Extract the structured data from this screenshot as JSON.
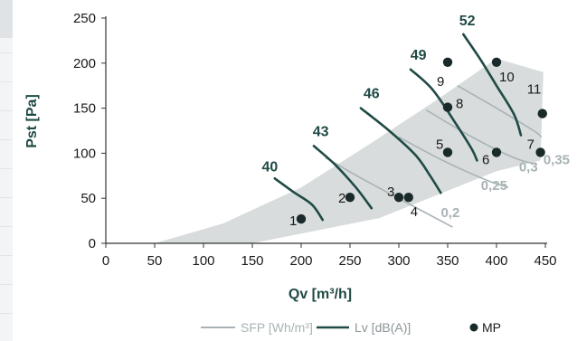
{
  "chart_data": {
    "type": "line",
    "xlabel": "Qv [m³/h]",
    "ylabel": "Pst [Pa]",
    "xlim": [
      0,
      450
    ],
    "ylim": [
      0,
      250
    ],
    "x_ticks": [
      "0",
      "50",
      "100",
      "150",
      "200",
      "250",
      "300",
      "350",
      "400",
      "450"
    ],
    "y_ticks": [
      "0",
      "50",
      "100",
      "150",
      "200",
      "250"
    ],
    "grid": false,
    "legend_position": "bottom-right",
    "colors": {
      "region": "#d8dcdd",
      "sfp": "#a9b3b6",
      "lv": "#1f4a45",
      "mp": "#1a2a2a",
      "axis": "#333333"
    },
    "operating_region": [
      [
        50,
        0
      ],
      [
        150,
        0
      ],
      [
        280,
        28
      ],
      [
        400,
        80
      ],
      [
        445,
        92
      ],
      [
        448,
        190
      ],
      [
        400,
        205
      ],
      [
        340,
        160
      ],
      [
        270,
        110
      ],
      [
        200,
        62
      ],
      [
        120,
        22
      ],
      [
        50,
        0
      ]
    ],
    "sfp_lines": [
      {
        "label": "0,2",
        "points": [
          [
            225,
            95
          ],
          [
            262,
            72
          ],
          [
            310,
            44
          ],
          [
            355,
            18
          ]
        ]
      },
      {
        "label": "0,25",
        "points": [
          [
            300,
            118
          ],
          [
            345,
            92
          ],
          [
            390,
            70
          ],
          [
            412,
            62
          ]
        ]
      },
      {
        "label": "0,3",
        "points": [
          [
            328,
            148
          ],
          [
            375,
            118
          ],
          [
            418,
            95
          ],
          [
            440,
            88
          ]
        ]
      },
      {
        "label": "0,35",
        "points": [
          [
            360,
            175
          ],
          [
            400,
            150
          ],
          [
            438,
            125
          ],
          [
            446,
            118
          ]
        ]
      }
    ],
    "lv_lines": [
      {
        "label": "40",
        "points": [
          [
            173,
            72
          ],
          [
            192,
            57
          ],
          [
            211,
            43
          ],
          [
            222,
            26
          ]
        ]
      },
      {
        "label": "43",
        "points": [
          [
            213,
            108
          ],
          [
            235,
            87
          ],
          [
            256,
            62
          ],
          [
            272,
            39
          ]
        ]
      },
      {
        "label": "46",
        "points": [
          [
            261,
            150
          ],
          [
            289,
            126
          ],
          [
            317,
            98
          ],
          [
            332,
            75
          ],
          [
            343,
            56
          ]
        ]
      },
      {
        "label": "49",
        "points": [
          [
            312,
            193
          ],
          [
            335,
            170
          ],
          [
            360,
            130
          ],
          [
            375,
            104
          ],
          [
            380,
            92
          ]
        ]
      },
      {
        "label": "52",
        "points": [
          [
            366,
            232
          ],
          [
            383,
            205
          ],
          [
            400,
            175
          ],
          [
            418,
            143
          ],
          [
            425,
            120
          ]
        ]
      }
    ],
    "lv_label_positions": [
      [
        168,
        80
      ],
      [
        220,
        119
      ],
      [
        272,
        161
      ],
      [
        320,
        204
      ],
      [
        370,
        242
      ]
    ],
    "sfp_label_positions": [
      [
        343,
        29
      ],
      [
        384,
        59
      ],
      [
        423,
        80
      ],
      [
        448,
        88
      ]
    ],
    "measurement_points": [
      {
        "label": "1",
        "x": 200,
        "y": 27
      },
      {
        "label": "2",
        "x": 250,
        "y": 51
      },
      {
        "label": "3",
        "x": 300,
        "y": 51
      },
      {
        "label": "4",
        "x": 310,
        "y": 51
      },
      {
        "label": "5",
        "x": 350,
        "y": 101
      },
      {
        "label": "6",
        "x": 400,
        "y": 101
      },
      {
        "label": "7",
        "x": 445,
        "y": 101
      },
      {
        "label": "8",
        "x": 350,
        "y": 151
      },
      {
        "label": "9",
        "x": 350,
        "y": 201
      },
      {
        "label": "10",
        "x": 400,
        "y": 201
      },
      {
        "label": "11",
        "x": 447,
        "y": 144
      }
    ],
    "legend": [
      {
        "label": "SFP [Wh/m³]",
        "kind": "sfp"
      },
      {
        "label": "Lv [dB(A)]",
        "kind": "lv"
      },
      {
        "label": "MP",
        "kind": "mp"
      }
    ]
  }
}
